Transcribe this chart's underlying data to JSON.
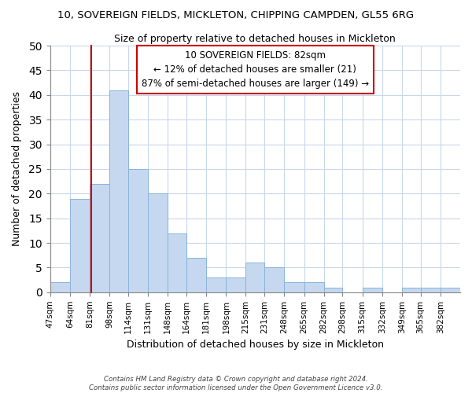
{
  "title": "10, SOVEREIGN FIELDS, MICKLETON, CHIPPING CAMPDEN, GL55 6RG",
  "subtitle": "Size of property relative to detached houses in Mickleton",
  "xlabel": "Distribution of detached houses by size in Mickleton",
  "ylabel": "Number of detached properties",
  "bar_color": "#c5d8ef",
  "bar_edge_color": "#8ab4d8",
  "bin_labels": [
    "47sqm",
    "64sqm",
    "81sqm",
    "98sqm",
    "114sqm",
    "131sqm",
    "148sqm",
    "164sqm",
    "181sqm",
    "198sqm",
    "215sqm",
    "231sqm",
    "248sqm",
    "265sqm",
    "282sqm",
    "298sqm",
    "315sqm",
    "332sqm",
    "349sqm",
    "365sqm",
    "382sqm"
  ],
  "bin_edges": [
    47,
    64,
    81,
    98,
    114,
    131,
    148,
    164,
    181,
    198,
    215,
    231,
    248,
    265,
    282,
    298,
    315,
    332,
    349,
    365,
    382,
    399
  ],
  "counts": [
    2,
    19,
    22,
    41,
    25,
    20,
    12,
    7,
    3,
    3,
    6,
    5,
    2,
    2,
    1,
    0,
    1,
    0,
    1,
    1,
    1
  ],
  "property_value": 82,
  "vline_color": "#cc0000",
  "annotation_box_color": "#ffffff",
  "annotation_box_edge": "#cc0000",
  "annotation_line1": "10 SOVEREIGN FIELDS: 82sqm",
  "annotation_line2": "← 12% of detached houses are smaller (21)",
  "annotation_line3": "87% of semi-detached houses are larger (149) →",
  "ylim": [
    0,
    50
  ],
  "yticks": [
    0,
    5,
    10,
    15,
    20,
    25,
    30,
    35,
    40,
    45,
    50
  ],
  "footer1": "Contains HM Land Registry data © Crown copyright and database right 2024.",
  "footer2": "Contains public sector information licensed under the Open Government Licence v3.0.",
  "background_color": "#ffffff",
  "grid_color": "#c8d8ea"
}
